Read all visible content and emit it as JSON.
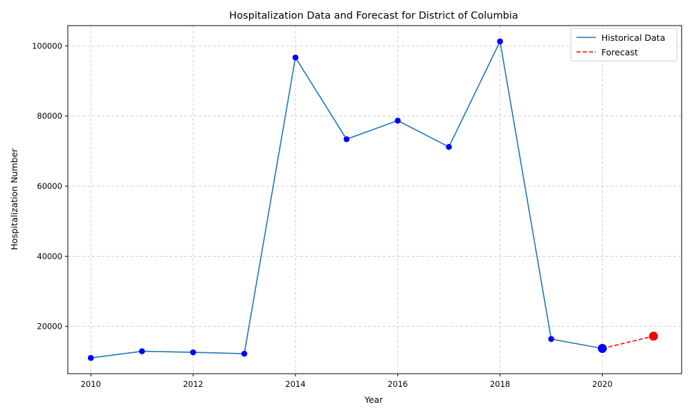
{
  "chart_data": {
    "type": "line",
    "title": "Hospitalization Data and Forecast for District of Columbia",
    "xlabel": "Year",
    "ylabel": "Hospitalization Number",
    "xlim": [
      2009.55,
      2021.55
    ],
    "ylim": [
      6500,
      105800
    ],
    "x_ticks": [
      2010,
      2012,
      2014,
      2016,
      2018,
      2020
    ],
    "y_ticks": [
      20000,
      40000,
      60000,
      80000,
      100000
    ],
    "grid": true,
    "legend_position": "top-right",
    "series": [
      {
        "name": "Historical Data",
        "style": "solid",
        "color": "#1f77b4",
        "marker_color": "#0000ff",
        "x": [
          2010,
          2011,
          2012,
          2013,
          2014,
          2015,
          2016,
          2017,
          2018,
          2019,
          2020
        ],
        "y": [
          11000,
          12900,
          12600,
          12200,
          96700,
          73400,
          78700,
          71200,
          101300,
          16400,
          13700
        ]
      },
      {
        "name": "Forecast",
        "style": "dashed",
        "color": "#ff0000",
        "marker_color": "#ff0000",
        "x": [
          2020,
          2021
        ],
        "y": [
          13700,
          17200
        ]
      }
    ],
    "highlight_points": [
      {
        "x": 2020,
        "y": 13700,
        "color": "#0000ff"
      },
      {
        "x": 2021,
        "y": 17200,
        "color": "#ff0000"
      }
    ]
  }
}
